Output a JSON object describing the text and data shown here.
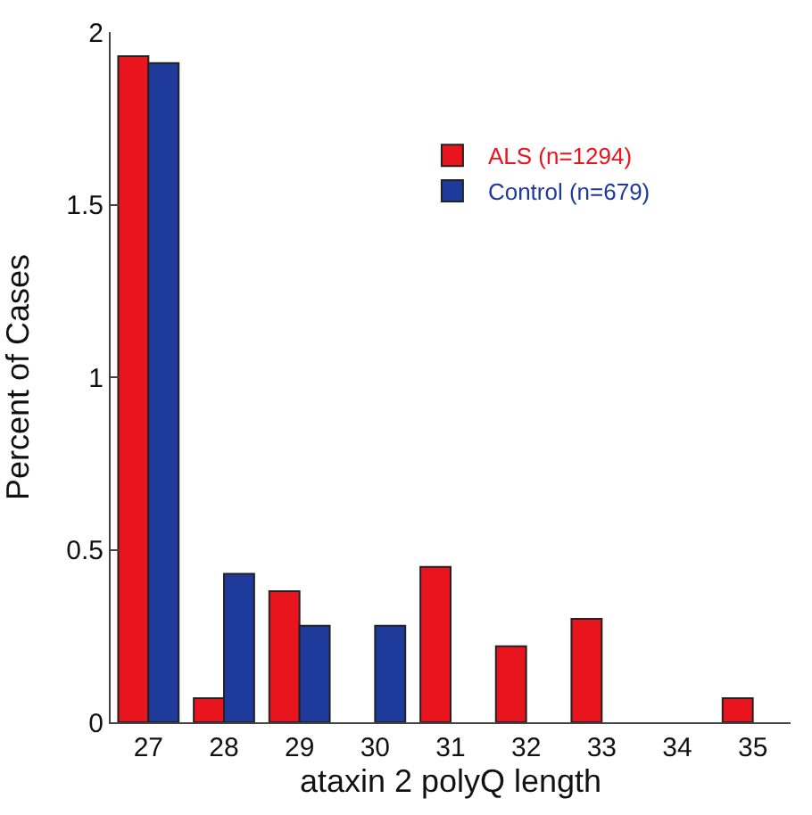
{
  "chart_data": {
    "type": "bar",
    "xlabel": "ataxin 2 polyQ length",
    "ylabel": "Percent of Cases",
    "categories": [
      "27",
      "28",
      "29",
      "30",
      "31",
      "32",
      "33",
      "34",
      "35"
    ],
    "series": [
      {
        "name": "ALS (n=1294)",
        "color": "#e8141e",
        "values": [
          1.93,
          0.07,
          0.38,
          0,
          0.45,
          0.22,
          0.3,
          0,
          0.07
        ]
      },
      {
        "name": "Control (n=679)",
        "color": "#1e3a9a",
        "values": [
          1.91,
          0.43,
          0.28,
          0.28,
          0,
          0,
          0,
          0,
          0
        ]
      }
    ],
    "ylim": [
      0,
      2
    ],
    "yticks": [
      0,
      0.5,
      1,
      1.5,
      2
    ],
    "grid": false,
    "legend": "top right"
  }
}
